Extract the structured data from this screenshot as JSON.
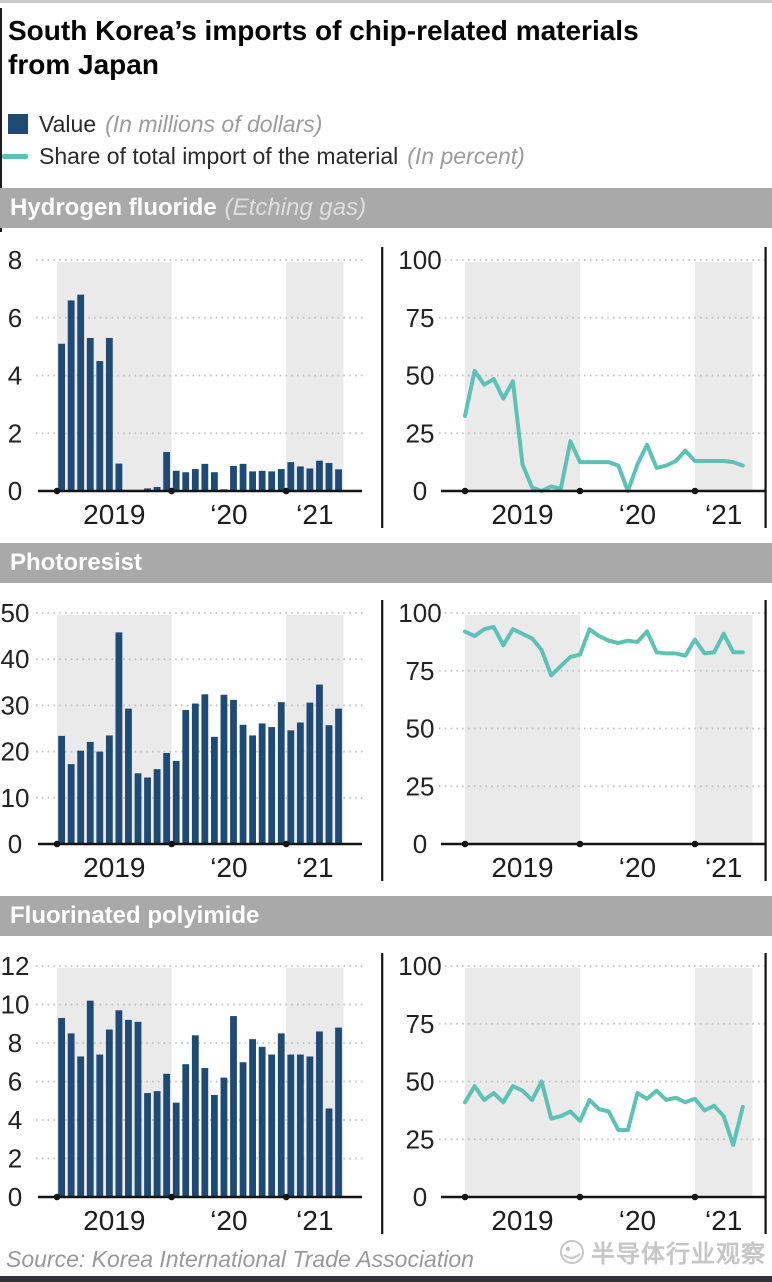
{
  "page": {
    "title_line1": "South Korea’s imports of chip-related materials",
    "title_line2": "from Japan",
    "source": "Source: Korea International Trade Association",
    "watermark": "半导体行业观察"
  },
  "legend": {
    "value_label": "Value",
    "value_unit": "(In millions of dollars)",
    "share_label": "Share of total import of the material",
    "share_unit": "(In percent)"
  },
  "colors": {
    "bar": "#1e4a74",
    "line": "#5ec1b6",
    "band": "#eaeaea",
    "header_bg": "#a9a9a9",
    "axis": "#141414",
    "grid": "#c2c2c2",
    "tick_text": "#1c1c1c"
  },
  "sections": [
    {
      "name": "Hydrogen fluoride",
      "subtitle": "(Etching gas)"
    },
    {
      "name": "Photoresist",
      "subtitle": ""
    },
    {
      "name": "Fluorinated polyimide",
      "subtitle": ""
    }
  ],
  "chart_data": [
    {
      "section": "Hydrogen fluoride",
      "type": "bar",
      "ylabel": "Value (In millions of dollars)",
      "x": [
        "2019-01",
        "2019-02",
        "2019-03",
        "2019-04",
        "2019-05",
        "2019-06",
        "2019-07",
        "2019-08",
        "2019-09",
        "2019-10",
        "2019-11",
        "2019-12",
        "2020-01",
        "2020-02",
        "2020-03",
        "2020-04",
        "2020-05",
        "2020-06",
        "2020-07",
        "2020-08",
        "2020-09",
        "2020-10",
        "2020-11",
        "2020-12",
        "2021-01",
        "2021-02",
        "2021-03",
        "2021-04",
        "2021-05",
        "2021-06"
      ],
      "values": [
        5.1,
        6.6,
        6.8,
        5.3,
        4.5,
        5.3,
        0.95,
        0,
        0,
        0.09,
        0.14,
        1.35,
        0.7,
        0.65,
        0.76,
        0.94,
        0.65,
        0.06,
        0.87,
        0.94,
        0.68,
        0.7,
        0.68,
        0.76,
        1.0,
        0.85,
        0.78,
        1.05,
        0.97,
        0.75
      ],
      "ylim": [
        0,
        8
      ],
      "yticks": [
        0,
        2,
        4,
        6,
        8
      ],
      "x_ticks": [
        {
          "index": 0,
          "center": 6,
          "label": "2019"
        },
        {
          "index": 12,
          "center": 18,
          "label": "‘20"
        },
        {
          "index": 24,
          "center": 27,
          "label": "‘21"
        }
      ],
      "shaded_x_ranges": [
        [
          "2019-01",
          "2019-12"
        ],
        [
          "2021-01",
          "2021-06"
        ]
      ],
      "grid": "dotted-horizontal"
    },
    {
      "section": "Hydrogen fluoride",
      "type": "line",
      "ylabel": "Share of total import of the material (In percent)",
      "x": [
        "2019-01",
        "2019-02",
        "2019-03",
        "2019-04",
        "2019-05",
        "2019-06",
        "2019-07",
        "2019-08",
        "2019-09",
        "2019-10",
        "2019-11",
        "2019-12",
        "2020-01",
        "2020-02",
        "2020-03",
        "2020-04",
        "2020-05",
        "2020-06",
        "2020-07",
        "2020-08",
        "2020-09",
        "2020-10",
        "2020-11",
        "2020-12",
        "2021-01",
        "2021-02",
        "2021-03",
        "2021-04",
        "2021-05",
        "2021-06"
      ],
      "values": [
        32.5,
        52,
        46,
        48.5,
        40,
        47.5,
        11.5,
        1.5,
        0,
        2,
        1,
        21.5,
        12.5,
        12.5,
        12.5,
        12.5,
        11,
        0,
        11.5,
        20,
        10,
        11,
        13,
        17.5,
        13,
        13,
        13,
        13,
        12.5,
        11
      ],
      "ylim": [
        0,
        100
      ],
      "yticks": [
        0,
        25,
        50,
        75,
        100
      ],
      "x_ticks": [
        {
          "index": 0,
          "center": 6,
          "label": "2019"
        },
        {
          "index": 12,
          "center": 18,
          "label": "‘20"
        },
        {
          "index": 24,
          "center": 27,
          "label": "‘21"
        }
      ],
      "shaded_x_ranges": [
        [
          "2019-01",
          "2019-12"
        ],
        [
          "2021-01",
          "2021-06"
        ]
      ],
      "grid": "dotted-horizontal"
    },
    {
      "section": "Photoresist",
      "type": "bar",
      "ylabel": "Value (In millions of dollars)",
      "x": [
        "2019-01",
        "2019-02",
        "2019-03",
        "2019-04",
        "2019-05",
        "2019-06",
        "2019-07",
        "2019-08",
        "2019-09",
        "2019-10",
        "2019-11",
        "2019-12",
        "2020-01",
        "2020-02",
        "2020-03",
        "2020-04",
        "2020-05",
        "2020-06",
        "2020-07",
        "2020-08",
        "2020-09",
        "2020-10",
        "2020-11",
        "2020-12",
        "2021-01",
        "2021-02",
        "2021-03",
        "2021-04",
        "2021-05",
        "2021-06"
      ],
      "values": [
        23.4,
        17.3,
        20.2,
        22.1,
        20,
        23.5,
        45.8,
        29.3,
        15.3,
        14.4,
        16.2,
        19.7,
        18,
        29,
        30.4,
        32.4,
        23.2,
        32.3,
        31.2,
        25.8,
        23.5,
        26.1,
        25.3,
        30.7,
        24.6,
        26.3,
        30.6,
        34.5,
        25.7,
        29.3
      ],
      "ylim": [
        0,
        50
      ],
      "yticks": [
        0,
        10,
        20,
        30,
        40,
        50
      ],
      "x_ticks": [
        {
          "index": 0,
          "center": 6,
          "label": "2019"
        },
        {
          "index": 12,
          "center": 18,
          "label": "‘20"
        },
        {
          "index": 24,
          "center": 27,
          "label": "‘21"
        }
      ],
      "shaded_x_ranges": [
        [
          "2019-01",
          "2019-12"
        ],
        [
          "2021-01",
          "2021-06"
        ]
      ],
      "grid": "dotted-horizontal"
    },
    {
      "section": "Photoresist",
      "type": "line",
      "ylabel": "Share of total import of the material (In percent)",
      "x": [
        "2019-01",
        "2019-02",
        "2019-03",
        "2019-04",
        "2019-05",
        "2019-06",
        "2019-07",
        "2019-08",
        "2019-09",
        "2019-10",
        "2019-11",
        "2019-12",
        "2020-01",
        "2020-02",
        "2020-03",
        "2020-04",
        "2020-05",
        "2020-06",
        "2020-07",
        "2020-08",
        "2020-09",
        "2020-10",
        "2020-11",
        "2020-12",
        "2021-01",
        "2021-02",
        "2021-03",
        "2021-04",
        "2021-05",
        "2021-06"
      ],
      "values": [
        92,
        90,
        93,
        94,
        86,
        93,
        91,
        89,
        84,
        73,
        77,
        81,
        82,
        93,
        90,
        88,
        87,
        88,
        87.5,
        92,
        83,
        82.5,
        82.5,
        81.5,
        88.5,
        82.5,
        83,
        91,
        83,
        83
      ],
      "ylim": [
        0,
        100
      ],
      "yticks": [
        0,
        25,
        50,
        75,
        100
      ],
      "x_ticks": [
        {
          "index": 0,
          "center": 6,
          "label": "2019"
        },
        {
          "index": 12,
          "center": 18,
          "label": "‘20"
        },
        {
          "index": 24,
          "center": 27,
          "label": "‘21"
        }
      ],
      "shaded_x_ranges": [
        [
          "2019-01",
          "2019-12"
        ],
        [
          "2021-01",
          "2021-06"
        ]
      ],
      "grid": "dotted-horizontal"
    },
    {
      "section": "Fluorinated polyimide",
      "type": "bar",
      "ylabel": "Value (In millions of dollars)",
      "x": [
        "2019-01",
        "2019-02",
        "2019-03",
        "2019-04",
        "2019-05",
        "2019-06",
        "2019-07",
        "2019-08",
        "2019-09",
        "2019-10",
        "2019-11",
        "2019-12",
        "2020-01",
        "2020-02",
        "2020-03",
        "2020-04",
        "2020-05",
        "2020-06",
        "2020-07",
        "2020-08",
        "2020-09",
        "2020-10",
        "2020-11",
        "2020-12",
        "2021-01",
        "2021-02",
        "2021-03",
        "2021-04",
        "2021-05",
        "2021-06"
      ],
      "values": [
        9.3,
        8.5,
        7.3,
        10.2,
        7.4,
        8.7,
        9.7,
        9.2,
        9.1,
        5.4,
        5.5,
        6.4,
        4.9,
        6.9,
        8.4,
        6.7,
        5.3,
        6.2,
        9.4,
        7,
        8.2,
        7.8,
        7.4,
        8.5,
        7.4,
        7.4,
        7.3,
        8.6,
        4.6,
        8.8
      ],
      "ylim": [
        0,
        12
      ],
      "yticks": [
        0,
        2,
        4,
        6,
        8,
        10,
        12
      ],
      "x_ticks": [
        {
          "index": 0,
          "center": 6,
          "label": "2019"
        },
        {
          "index": 12,
          "center": 18,
          "label": "‘20"
        },
        {
          "index": 24,
          "center": 27,
          "label": "‘21"
        }
      ],
      "shaded_x_ranges": [
        [
          "2019-01",
          "2019-12"
        ],
        [
          "2021-01",
          "2021-06"
        ]
      ],
      "grid": "dotted-horizontal"
    },
    {
      "section": "Fluorinated polyimide",
      "type": "line",
      "ylabel": "Share of total import of the material (In percent)",
      "x": [
        "2019-01",
        "2019-02",
        "2019-03",
        "2019-04",
        "2019-05",
        "2019-06",
        "2019-07",
        "2019-08",
        "2019-09",
        "2019-10",
        "2019-11",
        "2019-12",
        "2020-01",
        "2020-02",
        "2020-03",
        "2020-04",
        "2020-05",
        "2020-06",
        "2020-07",
        "2020-08",
        "2020-09",
        "2020-10",
        "2020-11",
        "2020-12",
        "2021-01",
        "2021-02",
        "2021-03",
        "2021-04",
        "2021-05",
        "2021-06"
      ],
      "values": [
        41,
        48,
        42,
        45,
        41,
        48,
        46,
        42,
        50,
        34,
        35,
        37,
        33,
        42,
        38,
        37,
        29,
        29,
        45,
        42.5,
        46,
        42,
        43,
        41,
        42.5,
        37.5,
        39.5,
        35,
        22.5,
        39
      ],
      "ylim": [
        0,
        100
      ],
      "yticks": [
        0,
        25,
        50,
        75,
        100
      ],
      "x_ticks": [
        {
          "index": 0,
          "center": 6,
          "label": "2019"
        },
        {
          "index": 12,
          "center": 18,
          "label": "‘20"
        },
        {
          "index": 24,
          "center": 27,
          "label": "‘21"
        }
      ],
      "shaded_x_ranges": [
        [
          "2019-01",
          "2019-12"
        ],
        [
          "2021-01",
          "2021-06"
        ]
      ],
      "grid": "dotted-horizontal"
    }
  ]
}
